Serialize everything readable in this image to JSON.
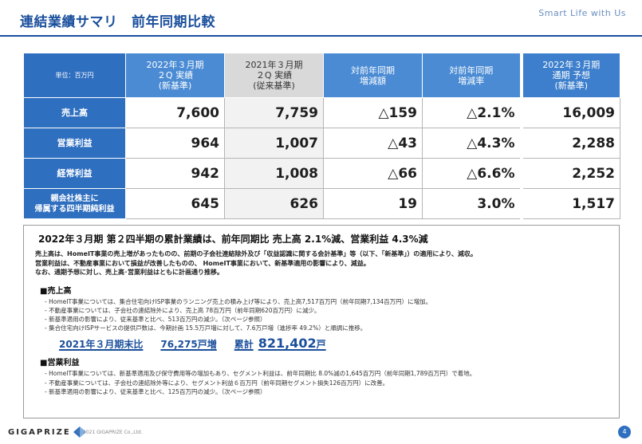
{
  "header": {
    "title": "連結業績サマリ　前年同期比較",
    "tagline": "Smart Life with Us"
  },
  "table": {
    "corner": "単位：百万円",
    "columns": [
      "2022年３月期\n２Q 実績\n(新基準)",
      "2021年３月期\n２Q 実績\n(従来基準)",
      "対前年同期\n増減額",
      "対前年同期\n増減率",
      "2022年３月期\n通期 予想\n(新基準)"
    ],
    "rows": [
      {
        "label": "売上高",
        "cur": "7,600",
        "prev": "7,759",
        "diff": "△159",
        "rate": "△2.1%",
        "fcst": "16,009"
      },
      {
        "label": "営業利益",
        "cur": "964",
        "prev": "1,007",
        "diff": "△43",
        "rate": "△4.3%",
        "fcst": "2,288"
      },
      {
        "label": "経常利益",
        "cur": "942",
        "prev": "1,008",
        "diff": "△66",
        "rate": "△6.6%",
        "fcst": "2,252"
      },
      {
        "label": "親会社株主に\n帰属する四半期純利益",
        "cur": "645",
        "prev": "626",
        "diff": "19",
        "rate": "3.0%",
        "fcst": "1,517"
      }
    ]
  },
  "summary": {
    "headline": "2022年３月期 第２四半期の累計業績は、前年同期比 売上高 2.1%減、営業利益 4.3%減",
    "lines": [
      "売上高は、HomeIT事業の売上増があったものの、前期の子会社連結除外及び「収益認識に関する会計基準」等（以下、「新基準」）の適用により、減収。",
      "営業利益は、不動産事業において損益が改善したものの、 HomeIT事業において、新基準適用の影響により、減益。",
      "なお、通期予想に対し、売上高･営業利益はともに計画通り推移。"
    ],
    "sales": {
      "heading": "■売上高",
      "bullets": [
        "- HomeIT事業については、集合住宅向けISP事業のランニング売上の積み上げ等により、売上高7,517百万円（前年同期7,134百万円）に増加。",
        "- 不動産事業については、子会社の連結除外により、売上高 78百万円（前年同期620百万円）に減少。",
        "- 新基準適用の影響により、従来基準と比べ、513百万円の減少。（次ページ参照）",
        "- 集合住宅向けISPサービスの提供戸数は、今期計画 15.5万戸増に対して、7.6万戸増（進捗率 49.2%）と順調に推移。"
      ]
    },
    "highlight": {
      "label": "2021年３月期末比",
      "increase": "76,275戸増",
      "total_label": "累計",
      "total_value": "821,402",
      "total_unit": "戸"
    },
    "op": {
      "heading": "■営業利益",
      "bullets": [
        "- HomeIT事業については、新基準適用及び保守費用等の増加もあり、セグメント利益は、前年同期比 8.0%減の1,645百万円（前年同期1,789百万円）で着地。",
        "- 不動産事業については、子会社の連結除外等により、セグメント利益６百万円（前年同期セグメント損失126百万円）に改善。",
        "- 新基準適用の影響により、従来基準と比べ、125百万円の減少。（次ページ参照）"
      ]
    }
  },
  "footer": {
    "logo": "GIGAPRIZE",
    "copyright": "© 2021 GIGAPRIZE Co.,Ltd.",
    "page": "4"
  },
  "colors": {
    "accent": "#1a4f9c",
    "header_blue": "#4a8bd4",
    "row_blue": "#2f6fc0",
    "prev_gray": "#d9d9d9"
  }
}
